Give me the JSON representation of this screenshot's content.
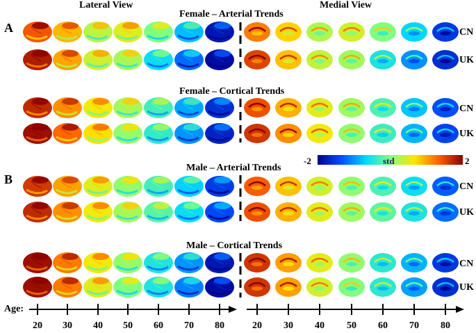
{
  "figure": {
    "view_titles": {
      "lateral": "Lateral View",
      "medial": "Medial View"
    },
    "panels": [
      {
        "letter": "A",
        "sections": [
          {
            "title": "Female – Arterial Trends",
            "rows": [
              "CN",
              "UK"
            ]
          },
          {
            "title": "Female – Cortical Trends",
            "rows": [
              "CN",
              "UK"
            ]
          }
        ]
      },
      {
        "letter": "B",
        "sections": [
          {
            "title": "Male – Arterial Trends",
            "rows": [
              "CN",
              "UK"
            ]
          },
          {
            "title": "Male – Cortical Trends",
            "rows": [
              "CN",
              "UK"
            ]
          }
        ]
      }
    ],
    "colorbar": {
      "min_label": "-2",
      "center_label": "std",
      "max_label": "2",
      "colors": [
        "#00008f",
        "#0050ff",
        "#00d8ff",
        "#80ff80",
        "#ffe600",
        "#ff6000",
        "#8b0000"
      ]
    },
    "age_axis": {
      "label": "Age:",
      "ticks": [
        "20",
        "30",
        "40",
        "50",
        "60",
        "70",
        "80"
      ]
    },
    "rows_std": [
      [
        1.4,
        0.9,
        0.3,
        0.5,
        0.0,
        -0.8,
        -1.8
      ],
      [
        1.8,
        1.0,
        0.4,
        0.2,
        -0.6,
        -1.2,
        -1.9
      ],
      [
        1.7,
        1.1,
        0.6,
        0.2,
        -0.3,
        -0.9,
        -1.6
      ],
      [
        1.9,
        1.3,
        0.7,
        0.1,
        -0.4,
        -1.0,
        -1.7
      ],
      [
        1.6,
        1.0,
        0.5,
        0.1,
        -0.3,
        -0.7,
        -1.5
      ],
      [
        1.7,
        1.1,
        0.6,
        0.2,
        -0.2,
        -0.6,
        -1.4
      ],
      [
        1.9,
        1.2,
        0.6,
        0.1,
        -0.5,
        -1.0,
        -1.8
      ],
      [
        1.9,
        1.2,
        0.5,
        0.0,
        -0.5,
        -1.1,
        -1.9
      ]
    ]
  }
}
